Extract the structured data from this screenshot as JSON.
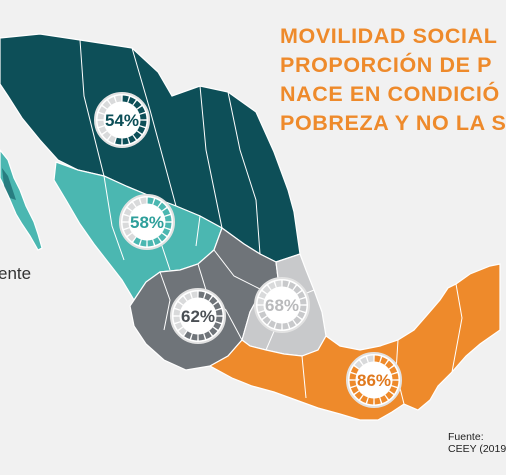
{
  "title": {
    "lines": [
      "MOVILIDAD SOCIAL",
      "PROPORCIÓN DE P",
      "NACE EN CONDICIÓ",
      "POBREZA Y NO LA S"
    ]
  },
  "legend_text": "ente",
  "source": {
    "label": "Fuente:",
    "text": "CEEY (2019"
  },
  "regions": [
    {
      "id": "norte",
      "color": "#0d4f58",
      "value": 0.54,
      "label": "54%",
      "text_color": "#0d4f58"
    },
    {
      "id": "norte-occidente",
      "color": "#4bb7b1",
      "value": 0.58,
      "label": "58%",
      "text_color": "#2e9f9b"
    },
    {
      "id": "centro-norte",
      "color": "#6f7479",
      "value": 0.62,
      "label": "62%",
      "text_color": "#4b5055"
    },
    {
      "id": "centro",
      "color": "#c8c9cb",
      "value": 0.68,
      "label": "68%",
      "text_color": "#b9babc"
    },
    {
      "id": "sur",
      "color": "#ee8a2b",
      "value": 0.86,
      "label": "86%",
      "text_color": "#e0791e"
    }
  ]
}
